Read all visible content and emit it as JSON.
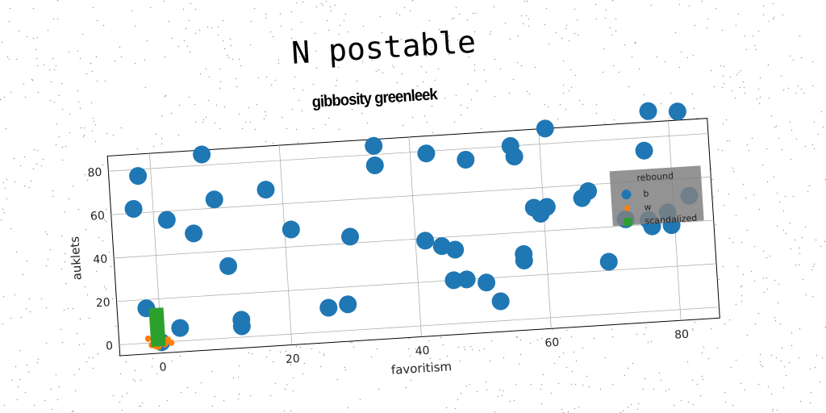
{
  "suptitle": "N postable",
  "chart_data": {
    "type": "scatter",
    "title": "gibbosity greenleek",
    "xlabel": "favoritism",
    "ylabel": "auklets",
    "xlim": [
      -6.5,
      86
    ],
    "ylim": [
      -5,
      87
    ],
    "xticks": [
      0,
      20,
      40,
      60,
      80
    ],
    "yticks": [
      0,
      20,
      40,
      60,
      80
    ],
    "grid": true,
    "legend": {
      "title": "rebound",
      "placement": "right"
    },
    "series": [
      {
        "name": "b",
        "marker": "circle",
        "color": "#1f77b4",
        "points": [
          [
            -2,
            77
          ],
          [
            -3,
            62
          ],
          [
            -2,
            16
          ],
          [
            0,
            0
          ],
          [
            3,
            6
          ],
          [
            2,
            56
          ],
          [
            6,
            49
          ],
          [
            8,
            85
          ],
          [
            9.5,
            64
          ],
          [
            11,
            33
          ],
          [
            12.5,
            8
          ],
          [
            12.5,
            5
          ],
          [
            17.5,
            67
          ],
          [
            21,
            48
          ],
          [
            26,
            11
          ],
          [
            29,
            12
          ],
          [
            30,
            43
          ],
          [
            34.5,
            84
          ],
          [
            34.5,
            75
          ],
          [
            41.5,
            39
          ],
          [
            42.5,
            79
          ],
          [
            44,
            36
          ],
          [
            45.5,
            20
          ],
          [
            46,
            34
          ],
          [
            47.5,
            20
          ],
          [
            48.5,
            75
          ],
          [
            50.5,
            18
          ],
          [
            52.5,
            9
          ],
          [
            55.5,
            80
          ],
          [
            56,
            75
          ],
          [
            56.5,
            30
          ],
          [
            56.5,
            27
          ],
          [
            58.5,
            51
          ],
          [
            59.5,
            48
          ],
          [
            60.5,
            51
          ],
          [
            61,
            87
          ],
          [
            66,
            54
          ],
          [
            67,
            57
          ],
          [
            69.5,
            24
          ],
          [
            72.5,
            43
          ],
          [
            76,
            74
          ],
          [
            76,
            42
          ],
          [
            76.5,
            39
          ],
          [
            77,
            92
          ],
          [
            79,
            45
          ],
          [
            79.5,
            39
          ],
          [
            81.5,
            91
          ],
          [
            82.5,
            52
          ]
        ]
      },
      {
        "name": "w",
        "marker": "circle",
        "color": "#ff7f0e",
        "points": [
          [
            -2,
            2
          ],
          [
            -1.5,
            -1
          ],
          [
            -1,
            1
          ],
          [
            -0.5,
            -2
          ],
          [
            0,
            0
          ],
          [
            0.5,
            -1
          ],
          [
            1,
            1
          ],
          [
            1.5,
            -0.5
          ],
          [
            -1,
            -1.5
          ],
          [
            0,
            2
          ]
        ]
      },
      {
        "name": "scandalized",
        "marker": "square",
        "color": "#2ca02c",
        "points": [
          [
            -1,
            0
          ],
          [
            -1,
            3
          ],
          [
            -1,
            6
          ],
          [
            -1,
            9
          ],
          [
            -1,
            12
          ],
          [
            -1,
            14
          ],
          [
            0,
            0
          ],
          [
            0,
            3
          ],
          [
            0,
            6
          ],
          [
            0,
            9
          ],
          [
            0,
            12
          ],
          [
            0,
            14
          ]
        ]
      }
    ]
  }
}
